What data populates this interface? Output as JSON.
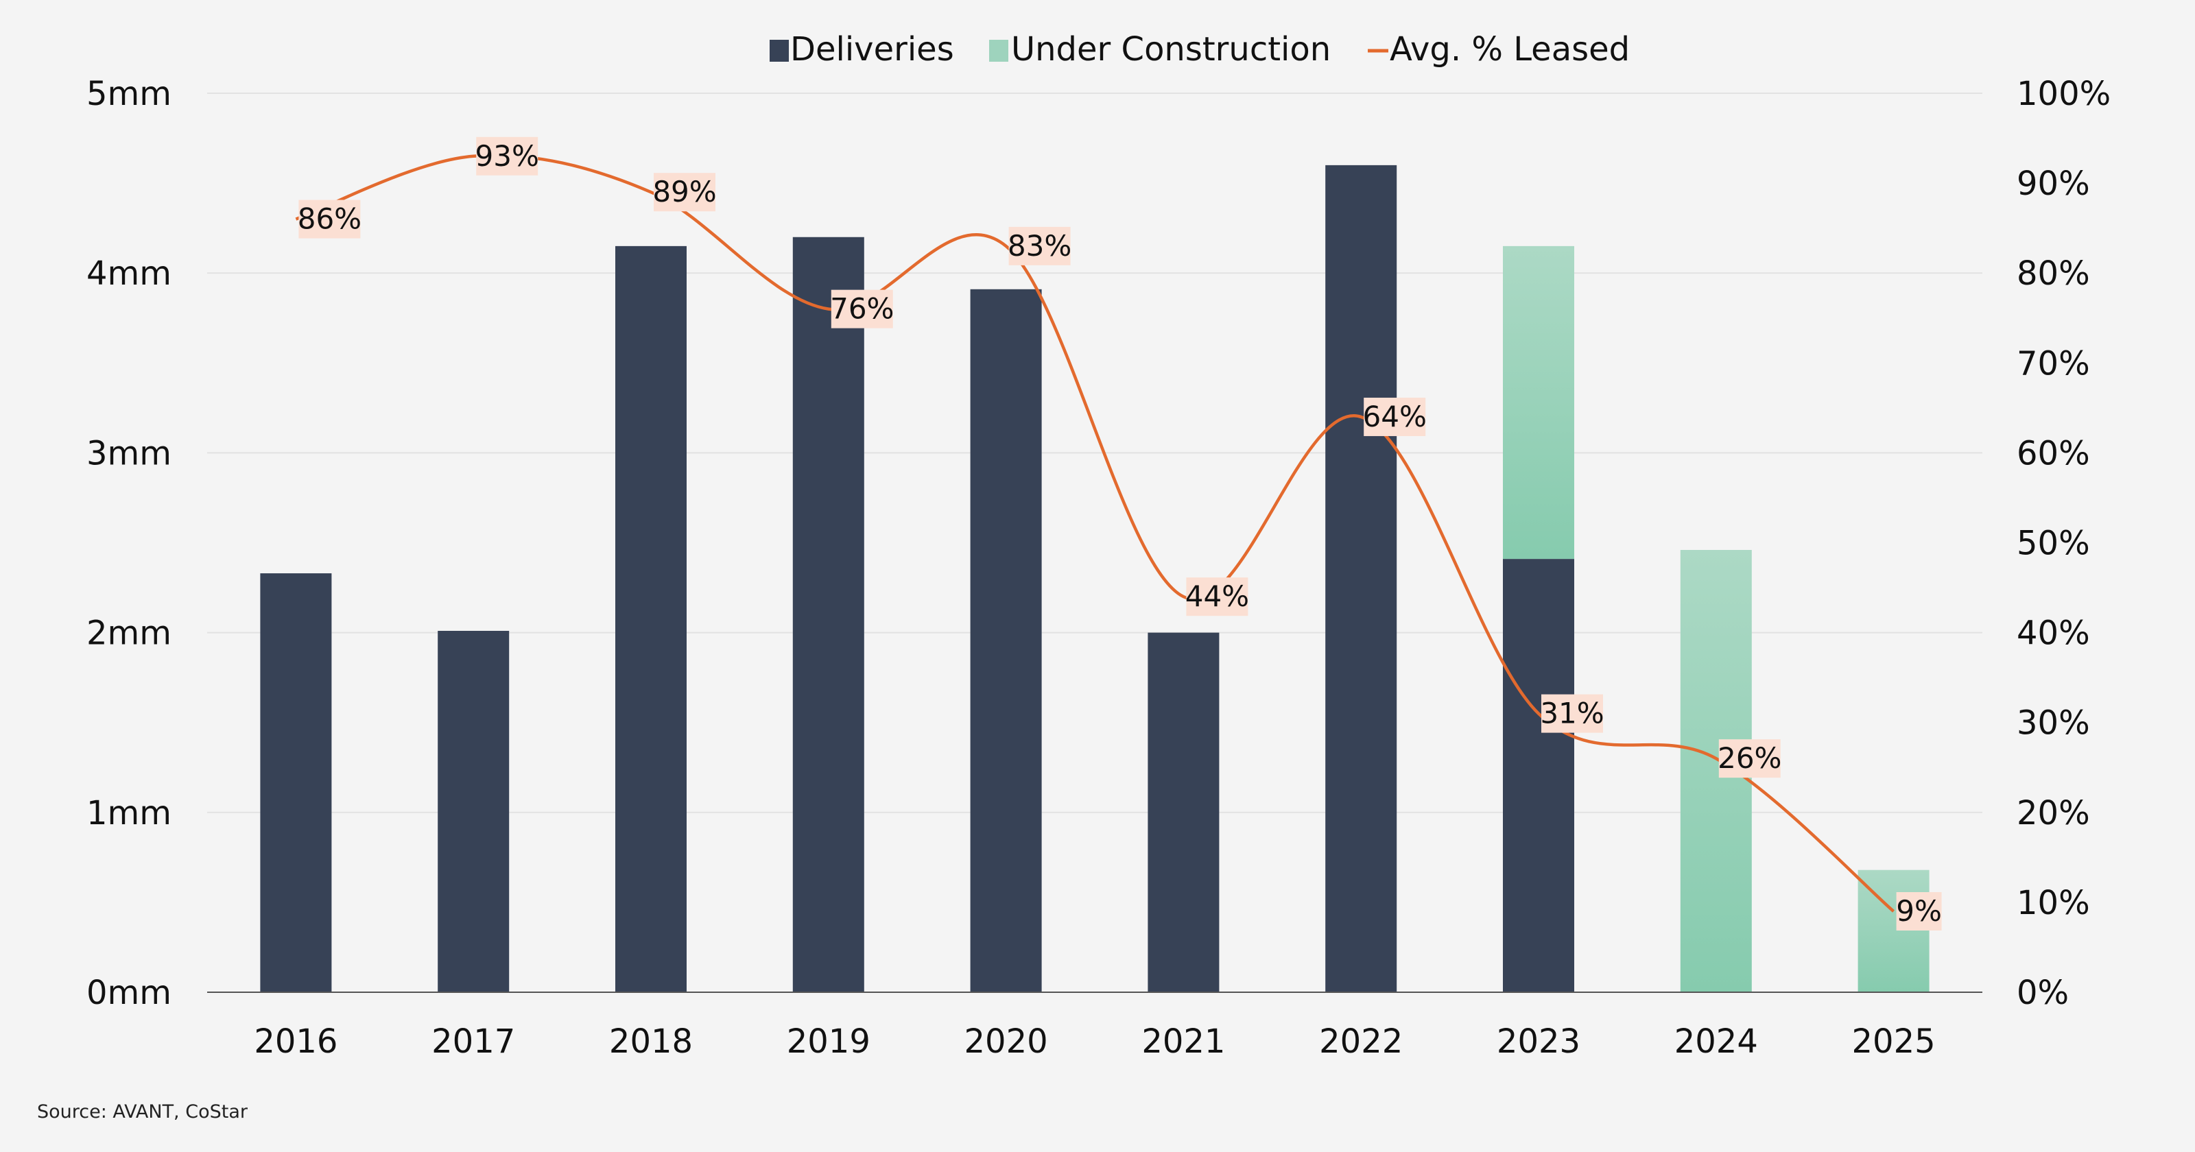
{
  "chart_data": {
    "type": "bar",
    "categories": [
      "2016",
      "2017",
      "2018",
      "2019",
      "2020",
      "2021",
      "2022",
      "2023",
      "2024",
      "2025"
    ],
    "series": [
      {
        "name": "Deliveries",
        "kind": "bar",
        "color": "#374256",
        "values": [
          2.33,
          2.01,
          4.15,
          4.2,
          3.91,
          2.0,
          4.6,
          2.41,
          0,
          0
        ]
      },
      {
        "name": "Under Construction",
        "kind": "stacked-bar",
        "color": "#8ccdb2",
        "values": [
          0,
          0,
          0,
          0,
          0,
          0,
          0,
          1.74,
          2.46,
          0.68
        ]
      },
      {
        "name": "Avg. % Leased",
        "kind": "line",
        "axis": "right",
        "color": "#e36a2e",
        "values": [
          86,
          93,
          89,
          76,
          83,
          44,
          64,
          31,
          26,
          9
        ],
        "labels": [
          "86%",
          "93%",
          "89%",
          "76%",
          "83%",
          "44%",
          "64%",
          "31%",
          "26%",
          "9%"
        ]
      }
    ],
    "legend": {
      "position": "top-center",
      "entries": [
        "Deliveries",
        "Under Construction",
        "Avg. % Leased"
      ]
    },
    "y_left": {
      "ylim": [
        0,
        5
      ],
      "ticks": [
        "0mm",
        "1mm",
        "2mm",
        "3mm",
        "4mm",
        "5mm"
      ]
    },
    "y_right": {
      "ylim": [
        0,
        100
      ],
      "ticks": [
        "0%",
        "10%",
        "20%",
        "30%",
        "40%",
        "50%",
        "60%",
        "70%",
        "80%",
        "90%",
        "100%"
      ]
    },
    "grid": true,
    "xlabel": "",
    "ylabel": ""
  },
  "source": "Source: AVANT, CoStar"
}
